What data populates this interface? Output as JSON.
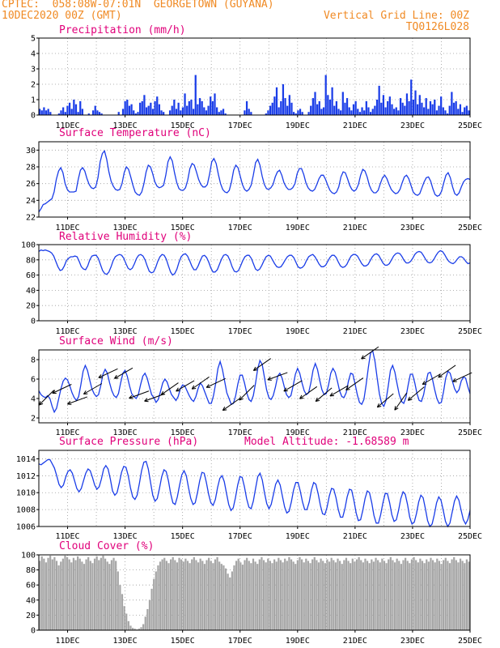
{
  "header": {
    "line1_left": "CPTEC:  058:08W-07:01N  GEORGETOWN (GUYANA)",
    "line2_left": "10DEC2020 00Z (GMT)",
    "line2_right": "Vertical Grid Line: 00Z",
    "line3_right": "TQ0126L028"
  },
  "colors": {
    "header": "#f08a24",
    "title": "#e0007a",
    "series": "#1a3de8",
    "cloud": "#a6a6a6",
    "grid": "#9a9a9a"
  },
  "x_axis": {
    "start_day": "10DEC",
    "end_day": "25DEC",
    "tick_labels": [
      "11DEC",
      "13DEC",
      "15DEC",
      "17DEC",
      "19DEC",
      "21DEC",
      "23DEC",
      "25DEC"
    ]
  },
  "chart_data": [
    {
      "id": "precip",
      "type": "bar",
      "title": "Precipitation (mm/h)",
      "ylim": [
        0,
        5
      ],
      "yticks": [
        "0",
        "1",
        "2",
        "3",
        "4",
        "5"
      ],
      "values": [
        0.4,
        0.3,
        0.5,
        0.3,
        0.4,
        0.2,
        0,
        0,
        0,
        0.1,
        0.3,
        0.5,
        0.2,
        0.6,
        0.8,
        0.4,
        1.0,
        0.7,
        0.2,
        0.9,
        0.4,
        0,
        0,
        0.1,
        0,
        0.3,
        0.6,
        0.3,
        0.2,
        0.1,
        0,
        0,
        0,
        0,
        0,
        0,
        0,
        0.2,
        0,
        0.4,
        0.9,
        1.0,
        0.6,
        0.7,
        0.3,
        0.1,
        0.2,
        0.8,
        0.9,
        1.3,
        0.5,
        0.6,
        0.8,
        0.4,
        0.9,
        1.2,
        0.7,
        0.3,
        0.2,
        0,
        0,
        0.3,
        0.6,
        1.0,
        0.4,
        0.8,
        0.3,
        0.5,
        1.4,
        0.6,
        0.9,
        1.0,
        0.4,
        2.6,
        0.7,
        1.1,
        0.9,
        0.5,
        0.3,
        0.6,
        1.2,
        0.9,
        1.4,
        0.5,
        0.2,
        0.3,
        0.4,
        0.1,
        0,
        0,
        0,
        0,
        0,
        0,
        0,
        0,
        0.3,
        0.9,
        0.4,
        0.2,
        0,
        0,
        0,
        0,
        0,
        0,
        0.1,
        0.3,
        0.6,
        0.8,
        1.2,
        1.8,
        0.5,
        0.9,
        2.0,
        1.1,
        0.6,
        1.3,
        0.8,
        0.2,
        0.1,
        0.3,
        0.4,
        0.2,
        0,
        0,
        0.2,
        0.6,
        1.1,
        1.5,
        0.7,
        0.9,
        0.4,
        0.5,
        2.6,
        1.3,
        1.0,
        1.8,
        0.6,
        0.9,
        0.4,
        0.3,
        1.5,
        0.8,
        1.1,
        0.5,
        0.3,
        0.7,
        0.9,
        0.4,
        0.2,
        0.5,
        0.3,
        0.9,
        0.5,
        0.2,
        0.4,
        0.6,
        1.0,
        1.9,
        0.8,
        1.3,
        0.5,
        0.9,
        1.2,
        0.7,
        0.4,
        0.5,
        0.3,
        1.1,
        0.8,
        0.6,
        1.4,
        0.9,
        2.3,
        1.0,
        1.6,
        0.7,
        1.3,
        0.8,
        0.5,
        1.1,
        0.4,
        0.9,
        0.7,
        1.0,
        0.3,
        0.6,
        1.2,
        0.5,
        0.3,
        0.1,
        0.6,
        1.5,
        0.8,
        0.9,
        0.4,
        0.7,
        0.2,
        0.5,
        0.6,
        0.3
      ],
      "fill_color": "#1a3de8"
    },
    {
      "id": "temperature",
      "type": "line",
      "title": "Surface Temperature (nC)",
      "ylim": [
        22,
        31
      ],
      "yticks": [
        "22",
        "24",
        "26",
        "28",
        "30"
      ],
      "y": [
        22.6,
        23.0,
        23.5,
        23.6,
        23.8,
        24.0,
        24.2,
        25.0,
        26.5,
        27.5,
        27.9,
        27.3,
        26.0,
        25.3,
        25.0,
        25.0,
        25.0,
        25.1,
        26.5,
        27.6,
        27.9,
        27.5,
        26.6,
        25.9,
        25.5,
        25.4,
        25.6,
        26.7,
        28.6,
        29.6,
        29.9,
        28.9,
        27.4,
        26.3,
        25.7,
        25.3,
        25.2,
        25.3,
        26.0,
        27.3,
        28.0,
        27.7,
        26.8,
        25.8,
        25.0,
        24.7,
        24.6,
        25.0,
        26.0,
        27.4,
        28.2,
        28.0,
        27.2,
        26.2,
        25.7,
        25.5,
        25.6,
        25.8,
        27.0,
        28.6,
        29.2,
        28.7,
        27.3,
        26.1,
        25.4,
        25.2,
        25.2,
        25.5,
        26.4,
        27.8,
        28.4,
        28.2,
        27.4,
        26.5,
        25.9,
        25.6,
        25.6,
        25.9,
        27.1,
        28.6,
        29.0,
        28.4,
        27.1,
        26.0,
        25.3,
        25.0,
        24.9,
        25.2,
        26.2,
        27.6,
        28.2,
        27.9,
        26.9,
        25.9,
        25.3,
        25.1,
        25.3,
        25.8,
        27.0,
        28.5,
        28.9,
        28.2,
        26.9,
        25.9,
        25.4,
        25.3,
        25.5,
        25.9,
        26.8,
        27.4,
        27.6,
        27.0,
        26.1,
        25.6,
        25.3,
        25.3,
        25.5,
        26.0,
        27.2,
        27.8,
        27.8,
        27.1,
        26.1,
        25.5,
        25.2,
        25.1,
        25.3,
        25.9,
        26.6,
        27.0,
        27.0,
        26.5,
        25.8,
        25.2,
        24.9,
        24.8,
        25.0,
        25.6,
        26.8,
        27.4,
        27.3,
        26.6,
        25.8,
        25.3,
        25.1,
        25.3,
        25.9,
        27.0,
        27.7,
        27.5,
        26.8,
        25.8,
        25.2,
        24.9,
        24.9,
        25.2,
        26.0,
        26.7,
        27.0,
        26.6,
        25.9,
        25.3,
        25.0,
        24.8,
        24.9,
        25.3,
        26.1,
        26.8,
        27.0,
        26.6,
        25.8,
        25.0,
        24.7,
        24.6,
        24.8,
        25.5,
        26.2,
        26.7,
        26.8,
        26.3,
        25.4,
        24.7,
        24.5,
        24.6,
        25.1,
        26.1,
        27.0,
        27.3,
        26.7,
        25.6,
        24.8,
        24.6,
        24.9,
        25.6,
        26.2,
        26.5,
        26.6,
        26.5
      ],
      "line_color": "#1a3de8"
    },
    {
      "id": "humidity",
      "type": "line",
      "title": "Relative Humidity (%)",
      "ylim": [
        0,
        100
      ],
      "yticks": [
        "0",
        "20",
        "40",
        "60",
        "80",
        "100"
      ],
      "y": [
        91,
        93,
        92,
        93,
        92,
        91,
        89,
        85,
        78,
        71,
        66,
        67,
        72,
        79,
        82,
        84,
        84,
        85,
        84,
        78,
        71,
        68,
        67,
        72,
        80,
        85,
        86,
        86,
        82,
        74,
        66,
        62,
        61,
        64,
        71,
        79,
        84,
        86,
        87,
        86,
        82,
        75,
        69,
        67,
        69,
        75,
        82,
        86,
        87,
        85,
        80,
        72,
        65,
        63,
        64,
        70,
        78,
        84,
        87,
        86,
        81,
        72,
        64,
        60,
        62,
        68,
        77,
        84,
        87,
        88,
        85,
        79,
        72,
        67,
        67,
        72,
        79,
        85,
        86,
        83,
        77,
        69,
        64,
        64,
        67,
        74,
        81,
        86,
        87,
        85,
        79,
        71,
        65,
        64,
        66,
        72,
        79,
        84,
        86,
        86,
        82,
        75,
        68,
        66,
        68,
        73,
        79,
        84,
        86,
        85,
        80,
        75,
        71,
        70,
        71,
        75,
        80,
        84,
        86,
        86,
        83,
        77,
        71,
        69,
        70,
        73,
        79,
        84,
        86,
        87,
        84,
        79,
        74,
        71,
        71,
        73,
        78,
        83,
        86,
        86,
        83,
        77,
        72,
        70,
        71,
        74,
        80,
        85,
        87,
        87,
        85,
        80,
        75,
        72,
        72,
        74,
        79,
        84,
        87,
        88,
        86,
        81,
        76,
        73,
        73,
        75,
        80,
        85,
        88,
        89,
        88,
        84,
        79,
        76,
        76,
        78,
        82,
        87,
        90,
        91,
        90,
        86,
        81,
        77,
        76,
        77,
        81,
        86,
        90,
        92,
        91,
        87,
        82,
        78,
        76,
        75,
        77,
        81,
        84,
        84,
        82,
        78,
        75,
        76
      ],
      "line_color": "#1a3de8"
    },
    {
      "id": "wind",
      "type": "line",
      "title": "Surface Wind (m/s)",
      "ylim": [
        1.5,
        9
      ],
      "yticks": [
        "2",
        "4",
        "6",
        "8"
      ],
      "y": [
        4.8,
        4.4,
        4.2,
        4.1,
        4.3,
        4.0,
        3.2,
        2.6,
        3.0,
        4.0,
        5.0,
        5.8,
        6.1,
        5.9,
        5.3,
        4.6,
        4.1,
        3.8,
        4.2,
        5.4,
        6.8,
        7.4,
        6.9,
        5.9,
        5.0,
        4.5,
        4.2,
        4.4,
        5.3,
        6.5,
        7.0,
        6.6,
        5.6,
        4.8,
        4.3,
        4.1,
        4.5,
        5.6,
        6.6,
        6.9,
        6.3,
        5.3,
        4.5,
        4.2,
        4.0,
        4.4,
        5.4,
        6.3,
        6.6,
        6.1,
        5.2,
        4.4,
        4.1,
        3.6,
        3.9,
        4.7,
        5.6,
        6.0,
        5.7,
        5.0,
        4.4,
        4.1,
        3.8,
        4.2,
        5.0,
        5.4,
        5.3,
        4.8,
        4.3,
        3.9,
        3.7,
        4.2,
        5.0,
        5.6,
        5.3,
        4.7,
        4.1,
        3.5,
        3.5,
        4.3,
        5.6,
        7.1,
        7.8,
        7.0,
        5.8,
        4.6,
        4.0,
        3.4,
        3.5,
        4.3,
        5.5,
        6.4,
        6.4,
        5.6,
        4.6,
        3.9,
        3.7,
        4.3,
        5.6,
        7.1,
        7.9,
        7.5,
        6.2,
        4.9,
        4.1,
        3.9,
        4.3,
        5.2,
        6.3,
        6.6,
        6.1,
        5.2,
        4.4,
        4.1,
        4.3,
        5.3,
        6.5,
        7.1,
        6.6,
        5.6,
        4.8,
        4.4,
        4.6,
        5.6,
        6.9,
        7.6,
        7.0,
        5.9,
        4.9,
        4.4,
        4.5,
        5.4,
        6.6,
        7.1,
        6.7,
        5.8,
        4.8,
        4.2,
        4.1,
        4.6,
        5.8,
        6.6,
        6.5,
        5.5,
        4.4,
        3.6,
        3.4,
        3.9,
        5.4,
        7.2,
        8.7,
        8.9,
        7.8,
        6.1,
        4.5,
        3.5,
        3.2,
        3.8,
        5.3,
        6.9,
        7.4,
        6.7,
        5.5,
        4.4,
        3.7,
        3.5,
        4.1,
        5.4,
        6.5,
        6.5,
        5.6,
        4.5,
        3.8,
        3.7,
        4.4,
        5.6,
        6.6,
        6.7,
        6.0,
        4.9,
        4.0,
        3.5,
        3.6,
        4.7,
        6.1,
        6.8,
        6.6,
        5.8,
        5.0,
        4.6,
        4.9,
        5.8,
        6.2,
        6.1,
        5.2,
        4.5
      ],
      "arrow_angles_deg": [
        225,
        205,
        200,
        210,
        205,
        210,
        200,
        200,
        215,
        210,
        215,
        205,
        215,
        225,
        215,
        200,
        210,
        215,
        220,
        210,
        215,
        215,
        220,
        235,
        220,
        210,
        215,
        205
      ],
      "line_color": "#1a3de8"
    },
    {
      "id": "pressure",
      "type": "line",
      "title": "Surface Pressure (hPa)",
      "subtitle": "Model Altitude: -1.68589 m",
      "ylim": [
        1006,
        1015
      ],
      "yticks": [
        "1006",
        "1008",
        "1010",
        "1012",
        "1014"
      ],
      "y": [
        1013.4,
        1013.3,
        1013.5,
        1013.7,
        1013.9,
        1013.9,
        1013.4,
        1012.9,
        1012.0,
        1011.0,
        1010.6,
        1010.9,
        1011.8,
        1012.5,
        1012.7,
        1012.3,
        1011.4,
        1010.5,
        1010.1,
        1010.5,
        1011.4,
        1012.3,
        1012.8,
        1012.6,
        1011.8,
        1010.9,
        1010.4,
        1010.7,
        1011.6,
        1012.8,
        1013.2,
        1012.8,
        1011.6,
        1010.2,
        1009.7,
        1010.0,
        1011.1,
        1012.4,
        1013.1,
        1013.0,
        1012.0,
        1010.6,
        1009.5,
        1009.2,
        1009.7,
        1011.1,
        1012.6,
        1013.6,
        1013.7,
        1012.8,
        1011.2,
        1009.7,
        1009.0,
        1009.3,
        1010.5,
        1011.9,
        1012.7,
        1012.5,
        1011.4,
        1009.9,
        1008.8,
        1008.6,
        1009.5,
        1010.9,
        1012.1,
        1012.6,
        1012.0,
        1010.6,
        1009.3,
        1008.6,
        1008.8,
        1010.0,
        1011.4,
        1012.4,
        1012.3,
        1011.2,
        1009.8,
        1008.8,
        1008.5,
        1009.2,
        1010.6,
        1011.7,
        1012.0,
        1011.3,
        1009.9,
        1008.6,
        1007.9,
        1008.2,
        1009.4,
        1010.9,
        1011.9,
        1011.8,
        1010.7,
        1009.3,
        1008.3,
        1008.1,
        1009.0,
        1010.5,
        1011.9,
        1012.3,
        1011.5,
        1010.0,
        1008.7,
        1008.1,
        1008.6,
        1009.8,
        1011.0,
        1011.5,
        1010.9,
        1009.6,
        1008.3,
        1007.6,
        1007.8,
        1008.9,
        1010.3,
        1011.2,
        1011.2,
        1010.2,
        1008.9,
        1008.0,
        1008.0,
        1008.9,
        1010.3,
        1011.2,
        1011.0,
        1009.9,
        1008.5,
        1007.5,
        1007.4,
        1008.3,
        1009.6,
        1010.5,
        1010.4,
        1009.4,
        1008.0,
        1007.1,
        1007.1,
        1008.1,
        1009.5,
        1010.4,
        1010.3,
        1009.1,
        1007.6,
        1006.7,
        1006.8,
        1007.9,
        1009.3,
        1010.2,
        1010.0,
        1008.8,
        1007.3,
        1006.4,
        1006.4,
        1007.4,
        1008.8,
        1009.9,
        1009.9,
        1008.8,
        1007.4,
        1006.6,
        1006.8,
        1007.9,
        1009.3,
        1010.1,
        1009.8,
        1008.6,
        1007.1,
        1006.3,
        1006.5,
        1007.5,
        1008.9,
        1009.7,
        1009.4,
        1008.1,
        1006.7,
        1006.0,
        1006.3,
        1007.4,
        1008.8,
        1009.5,
        1009.1,
        1007.9,
        1006.6,
        1006.0,
        1006.4,
        1007.7,
        1009.0,
        1009.6,
        1009.1,
        1007.9,
        1006.8,
        1006.3,
        1006.8,
        1007.9
      ],
      "line_color": "#1a3de8"
    },
    {
      "id": "cloud",
      "type": "bar",
      "title": "Cloud Cover (%)",
      "ylim": [
        0,
        100
      ],
      "yticks": [
        "0",
        "20",
        "40",
        "60",
        "80",
        "100"
      ],
      "values": [
        92,
        98,
        95,
        90,
        96,
        99,
        94,
        97,
        92,
        86,
        91,
        95,
        99,
        97,
        94,
        90,
        96,
        93,
        98,
        95,
        91,
        88,
        94,
        97,
        92,
        89,
        95,
        98,
        93,
        96,
        99,
        95,
        91,
        88,
        93,
        96,
        92,
        78,
        60,
        48,
        32,
        22,
        12,
        6,
        3,
        2,
        1,
        2,
        4,
        8,
        18,
        28,
        40,
        55,
        68,
        78,
        86,
        91,
        94,
        96,
        92,
        89,
        94,
        97,
        93,
        90,
        96,
        94,
        91,
        95,
        92,
        89,
        94,
        97,
        93,
        90,
        95,
        92,
        88,
        93,
        96,
        92,
        89,
        94,
        97,
        91,
        88,
        86,
        82,
        75,
        70,
        78,
        86,
        92,
        95,
        90,
        87,
        93,
        96,
        92,
        89,
        95,
        91,
        88,
        94,
        97,
        93,
        90,
        95,
        92,
        89,
        94,
        91,
        96,
        93,
        90,
        95,
        92,
        97,
        94,
        91,
        88,
        93,
        97,
        94,
        90,
        95,
        92,
        89,
        94,
        97,
        93,
        90,
        95,
        92,
        89,
        94,
        91,
        96,
        93,
        90,
        95,
        92,
        88,
        93,
        96,
        92,
        89,
        95,
        91,
        94,
        97,
        93,
        90,
        95,
        92,
        89,
        94,
        91,
        96,
        93,
        90,
        95,
        92,
        89,
        94,
        97,
        93,
        90,
        95,
        92,
        88,
        93,
        96,
        92,
        89,
        94,
        97,
        93,
        90,
        95,
        92,
        89,
        94,
        91,
        96,
        93,
        90,
        95,
        92,
        88,
        93,
        96,
        92,
        89,
        94,
        97,
        93,
        90,
        95,
        92,
        89,
        94,
        91
      ],
      "fill_color": "#a6a6a6"
    }
  ]
}
